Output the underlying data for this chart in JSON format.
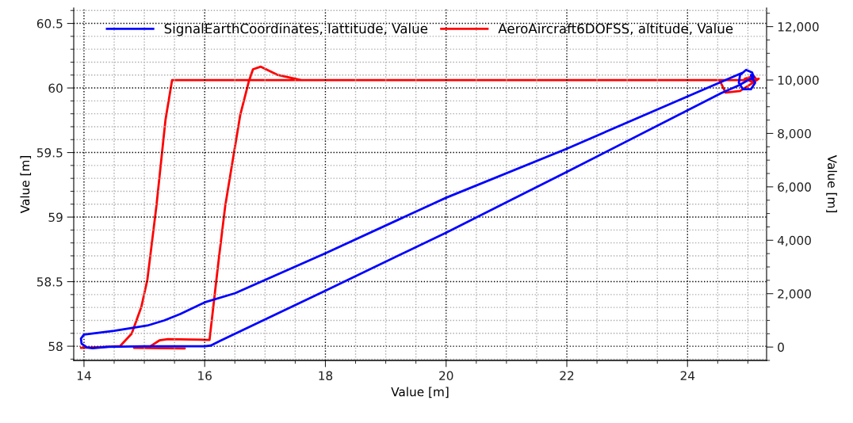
{
  "chart_data": {
    "type": "line",
    "xlabel": "Value [m]",
    "ylabel": "Value [m]",
    "y2label": "Value [m]",
    "xlim": [
      13.83,
      25.31
    ],
    "ylim": [
      57.89,
      60.62
    ],
    "y2lim": [
      -500,
      12700
    ],
    "xticks": [
      14,
      {
        "value": 14.5,
        "label": null
      },
      {
        "value": 15,
        "label": null
      },
      {
        "value": 15.5,
        "label": null
      },
      16,
      {
        "value": 16.5,
        "label": null
      },
      {
        "value": 17,
        "label": null
      },
      {
        "value": 17.5,
        "label": null
      },
      18,
      {
        "value": 18.5,
        "label": null
      },
      {
        "value": 19,
        "label": null
      },
      {
        "value": 19.5,
        "label": null
      },
      20,
      {
        "value": 20.5,
        "label": null
      },
      {
        "value": 21,
        "label": null
      },
      {
        "value": 21.5,
        "label": null
      },
      22,
      {
        "value": 22.5,
        "label": null
      },
      {
        "value": 23,
        "label": null
      },
      {
        "value": 23.5,
        "label": null
      },
      24,
      {
        "value": 24.5,
        "label": null
      },
      {
        "value": 25,
        "label": null
      }
    ],
    "yticks": [
      {
        "value": 57.9,
        "label": null
      },
      58,
      {
        "value": 58.1,
        "label": null
      },
      {
        "value": 58.2,
        "label": null
      },
      {
        "value": 58.3,
        "label": null
      },
      {
        "value": 58.4,
        "label": null
      },
      58.5,
      {
        "value": 58.6,
        "label": null
      },
      {
        "value": 58.7,
        "label": null
      },
      {
        "value": 58.8,
        "label": null
      },
      {
        "value": 58.9,
        "label": null
      },
      59,
      {
        "value": 59.1,
        "label": null
      },
      {
        "value": 59.2,
        "label": null
      },
      {
        "value": 59.3,
        "label": null
      },
      {
        "value": 59.4,
        "label": null
      },
      59.5,
      {
        "value": 59.6,
        "label": null
      },
      {
        "value": 59.7,
        "label": null
      },
      {
        "value": 59.8,
        "label": null
      },
      {
        "value": 59.9,
        "label": null
      },
      60,
      {
        "value": 60.1,
        "label": null
      },
      {
        "value": 60.2,
        "label": null
      },
      {
        "value": 60.3,
        "label": null
      },
      {
        "value": 60.4,
        "label": null
      },
      60.5,
      {
        "value": 60.6,
        "label": null
      }
    ],
    "y2ticks": [
      {
        "value": -500,
        "label": null
      },
      0,
      {
        "value": 500,
        "label": null
      },
      {
        "value": 1000,
        "label": null
      },
      {
        "value": 1500,
        "label": null
      },
      {
        "value": 2000,
        "label": "2,000"
      },
      {
        "value": 2500,
        "label": null
      },
      {
        "value": 3000,
        "label": null
      },
      {
        "value": 3500,
        "label": null
      },
      {
        "value": 4000,
        "label": "4,000"
      },
      {
        "value": 4500,
        "label": null
      },
      {
        "value": 5000,
        "label": null
      },
      {
        "value": 5500,
        "label": null
      },
      {
        "value": 6000,
        "label": "6,000"
      },
      {
        "value": 6500,
        "label": null
      },
      {
        "value": 7000,
        "label": null
      },
      {
        "value": 7500,
        "label": null
      },
      {
        "value": 8000,
        "label": "8,000"
      },
      {
        "value": 8500,
        "label": null
      },
      {
        "value": 9000,
        "label": null
      },
      {
        "value": 9500,
        "label": null
      },
      {
        "value": 10000,
        "label": "10,000"
      },
      {
        "value": 10500,
        "label": null
      },
      {
        "value": 11000,
        "label": null
      },
      {
        "value": 11500,
        "label": null
      },
      {
        "value": 12000,
        "label": "12,000"
      },
      {
        "value": 12500,
        "label": null
      }
    ],
    "grid": true,
    "legend": "top",
    "series": [
      {
        "name": "SignalEarthCoordinates, lattitude, Value",
        "color": "#0000ff",
        "axis": "y",
        "x": [
          24.92,
          22,
          20,
          18,
          16.5,
          16,
          15.6,
          15.33,
          15.05,
          14.5,
          14.0,
          13.95,
          13.96,
          14.05,
          14.14,
          14.4,
          15,
          16,
          16.1,
          16.25,
          18,
          20,
          22,
          24.56,
          24.85,
          25.0,
          25.1,
          25.07,
          24.97,
          24.87,
          24.85,
          24.92,
          25.05,
          25.12,
          25.05
        ],
        "values": [
          60.12,
          59.53,
          59.15,
          58.72,
          58.41,
          58.34,
          58.25,
          58.2,
          58.16,
          58.12,
          58.09,
          58.06,
          58.02,
          57.99,
          57.985,
          57.995,
          58.0,
          58.0,
          58.005,
          58.04,
          58.43,
          58.88,
          59.35,
          59.96,
          60.02,
          60.06,
          60.08,
          60.12,
          60.14,
          60.1,
          60.04,
          59.99,
          59.99,
          60.04,
          60.1
        ]
      },
      {
        "name": "AeroAircraft6DOFSS, altitude, Value",
        "color": "#ff0000",
        "axis": "y2",
        "x": [
          13.95,
          14.3,
          14.6,
          14.79,
          14.95,
          15.05,
          15.2,
          15.35,
          15.46,
          25.15,
          25.1,
          24.95,
          25.05,
          25.18,
          25.09,
          24.87,
          24.63,
          24.53,
          24.4,
          17.6,
          17.2,
          16.93,
          16.8,
          16.73,
          16.59,
          16.45,
          16.34,
          16.23,
          16.08,
          15.39,
          15.25,
          15.08,
          14.83,
          15.67
        ],
        "values": [
          -30,
          0,
          40,
          500,
          1500,
          2520,
          5280,
          8500,
          10000,
          10000,
          10150,
          10050,
          9950,
          10050,
          9910,
          9590,
          9530,
          10000,
          10000,
          10000,
          10200,
          10500,
          10400,
          9940,
          8700,
          6800,
          5280,
          3230,
          270,
          300,
          250,
          0,
          -30,
          -50
        ]
      }
    ]
  }
}
